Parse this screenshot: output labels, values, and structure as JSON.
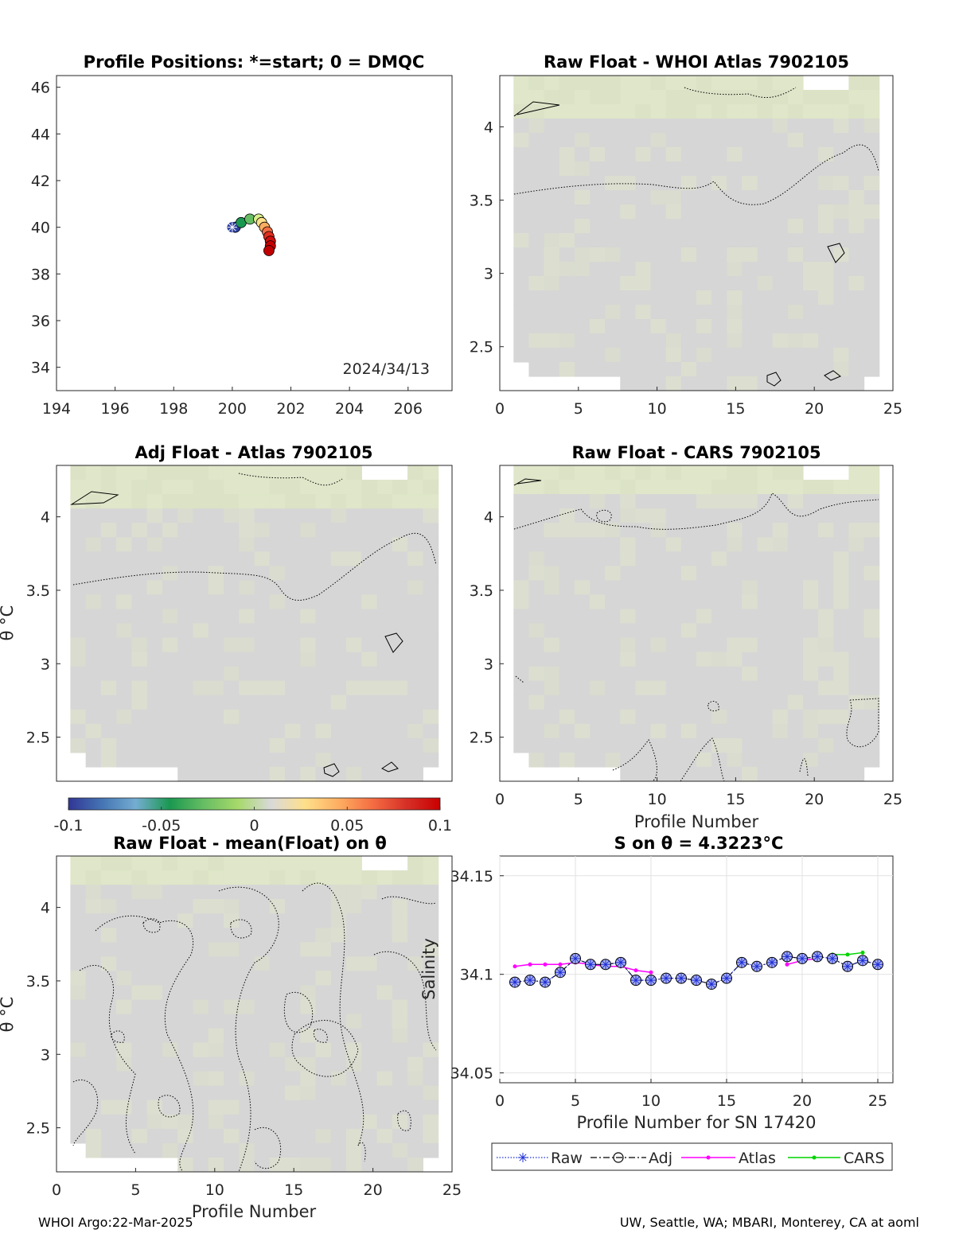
{
  "footer": {
    "left": "WHOI Argo:22-Mar-2025",
    "right": "UW, Seattle, WA; MBARI, Monterey, CA at aoml"
  },
  "colorbar": {
    "ticks": [
      "-0.1",
      "-0.05",
      "0",
      "0.05",
      "0.1"
    ],
    "range": [
      -0.1,
      0.1
    ],
    "colormap": [
      "#313695",
      "#4575b4",
      "#74add1",
      "#1a9850",
      "#66bd63",
      "#a6d96a",
      "#d9d9d9",
      "#fee08b",
      "#fdae61",
      "#f46d43",
      "#d73027",
      "#c80000"
    ]
  },
  "colors": {
    "field": "#d6d6d6",
    "field_green": "#dfe6c9",
    "raw": "#1f2fd6",
    "adj": "#000000",
    "atlas": "#ff00ff",
    "cars": "#00d400",
    "marker_fill": "#aab2f0"
  },
  "chart_data": [
    {
      "type": "scatter",
      "title": "Profile Positions: *=start; 0 = DMQC",
      "annotation": "2024/34/13",
      "xlim": [
        194,
        207.5
      ],
      "ylim": [
        33,
        46.5
      ],
      "xticks": [
        "194",
        "196",
        "198",
        "200",
        "202",
        "204",
        "206"
      ],
      "yticks": [
        "34",
        "36",
        "38",
        "40",
        "42",
        "44",
        "46"
      ],
      "lon": [
        200.1,
        200.3,
        200.6,
        200.9,
        201.0,
        201.1,
        201.2,
        201.25,
        201.3,
        201.3,
        201.25
      ],
      "lat": [
        40.0,
        40.2,
        40.35,
        40.35,
        40.2,
        40.0,
        39.8,
        39.6,
        39.4,
        39.2,
        39.0
      ],
      "start": {
        "lon": 200.0,
        "lat": 40.0
      },
      "colorscale": [
        "#2c3e9e",
        "#1a9850",
        "#66bd63",
        "#d9ef8b",
        "#fee08b",
        "#fdae61",
        "#f46d43",
        "#e0301e",
        "#d01010",
        "#c80000",
        "#c00000"
      ]
    },
    {
      "type": "heatmap",
      "title": "Raw Float - WHOI Atlas  7902105",
      "xlabel": "",
      "ylabel": "",
      "xlim": [
        0,
        25
      ],
      "ylim": [
        2.2,
        4.35
      ],
      "xticks": [
        "0",
        "5",
        "10",
        "15",
        "20",
        "25"
      ],
      "yticks": [
        "2.5",
        "3",
        "3.5",
        "4"
      ]
    },
    {
      "type": "heatmap",
      "title": "Adj Float - Atlas  7902105",
      "xlabel": "",
      "ylabel": "θ °C",
      "xlim": [
        0,
        25
      ],
      "ylim": [
        2.2,
        4.35
      ],
      "xticks": [],
      "yticks": [
        "2.5",
        "3",
        "3.5",
        "4"
      ]
    },
    {
      "type": "heatmap",
      "title": "Raw Float - CARS  7902105",
      "xlabel": "Profile Number",
      "ylabel": "",
      "xlim": [
        0,
        25
      ],
      "ylim": [
        2.2,
        4.35
      ],
      "xticks": [
        "0",
        "5",
        "10",
        "15",
        "20",
        "25"
      ],
      "yticks": [
        "2.5",
        "3",
        "3.5",
        "4"
      ]
    },
    {
      "type": "heatmap",
      "title": "Raw Float - mean(Float) on θ",
      "xlabel": "Profile Number",
      "ylabel": "θ °C",
      "xlim": [
        0,
        25
      ],
      "ylim": [
        2.2,
        4.35
      ],
      "xticks": [
        "0",
        "5",
        "10",
        "15",
        "20",
        "25"
      ],
      "yticks": [
        "2.5",
        "3",
        "3.5",
        "4"
      ]
    },
    {
      "type": "line",
      "title": "S on θ = 4.3223°C",
      "xlabel": "Profile Number for SN 17420",
      "ylabel": "Salinity",
      "xlim": [
        0,
        26
      ],
      "ylim": [
        34.045,
        34.16
      ],
      "xticks": [
        "0",
        "5",
        "10",
        "15",
        "20",
        "25"
      ],
      "yticks": [
        "34.05",
        "34.1",
        "34.15"
      ],
      "yticks_values": [
        34.05,
        34.1,
        34.15
      ],
      "grid": true,
      "legend_position": "bottom",
      "series": [
        {
          "name": "Raw",
          "x": [
            1,
            2,
            3,
            4,
            5,
            6,
            7,
            8,
            9,
            10,
            11,
            12,
            13,
            14,
            15,
            16,
            17,
            18,
            19,
            20,
            21,
            22,
            23,
            24,
            25
          ],
          "y": [
            34.096,
            34.097,
            34.096,
            34.101,
            34.108,
            34.105,
            34.105,
            34.106,
            34.097,
            34.097,
            34.098,
            34.098,
            34.097,
            34.095,
            34.098,
            34.106,
            34.104,
            34.106,
            34.109,
            34.108,
            34.109,
            34.108,
            34.104,
            34.107,
            34.105
          ]
        },
        {
          "name": "Adj",
          "x": [
            1,
            2,
            3,
            4,
            5,
            6,
            7,
            8,
            9,
            10,
            11,
            12,
            13,
            14,
            15,
            16,
            17,
            18,
            19,
            20,
            21,
            22,
            23,
            24,
            25
          ],
          "y": [
            34.096,
            34.097,
            34.096,
            34.101,
            34.108,
            34.105,
            34.105,
            34.106,
            34.097,
            34.097,
            34.098,
            34.098,
            34.097,
            34.095,
            34.098,
            34.106,
            34.104,
            34.106,
            34.109,
            34.108,
            34.109,
            34.108,
            34.104,
            34.107,
            34.105
          ]
        },
        {
          "name": "Atlas",
          "x": [
            1,
            2,
            3,
            4,
            5,
            6,
            7,
            8,
            9,
            10,
            19,
            20,
            21
          ],
          "y": [
            34.104,
            34.105,
            34.105,
            34.105,
            34.106,
            34.105,
            34.104,
            34.104,
            34.102,
            34.101,
            34.105,
            34.107,
            34.108
          ]
        },
        {
          "name": "CARS",
          "x": [
            22,
            23,
            24
          ],
          "y": [
            34.11,
            34.11,
            34.111
          ]
        }
      ]
    }
  ]
}
